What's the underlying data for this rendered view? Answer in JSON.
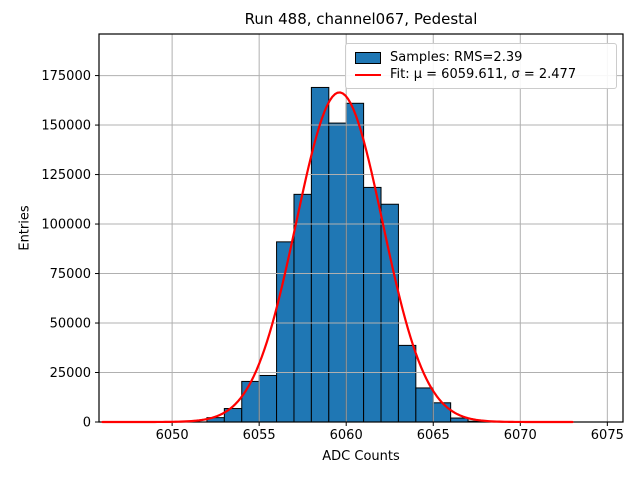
{
  "chart_data": {
    "type": "histogram",
    "title": "Run 488, channel067, Pedestal",
    "xlabel": "ADC Counts",
    "ylabel": "Entries",
    "xlim": [
      6045.8,
      6075.9
    ],
    "ylim": [
      0,
      196000
    ],
    "xticks": [
      6050,
      6055,
      6060,
      6065,
      6070,
      6075
    ],
    "yticks": [
      0,
      25000,
      50000,
      75000,
      100000,
      125000,
      150000,
      175000
    ],
    "grid": true,
    "grid_color": "#b0b0b0",
    "colors": {
      "bar_fill": "#1f77b4",
      "bar_edge": "#000000",
      "fit_line": "#ff0000"
    },
    "bins": {
      "width": 1,
      "starts": [
        6052,
        6053,
        6054,
        6055,
        6056,
        6057,
        6058,
        6059,
        6060,
        6061,
        6062,
        6063,
        6064,
        6065,
        6066,
        6067
      ],
      "counts": [
        2200,
        6800,
        20500,
        23500,
        91000,
        115000,
        169000,
        151000,
        161000,
        118500,
        110000,
        38700,
        17200,
        9700,
        2000,
        400
      ]
    },
    "fit": {
      "mu": 6059.611,
      "sigma": 2.477,
      "peak": 166500,
      "x_start": 6046.0,
      "x_end": 6073.0
    },
    "legend": [
      {
        "swatch": "patch",
        "label": "Samples: RMS=2.39"
      },
      {
        "swatch": "line",
        "label": "Fit: μ = 6059.611, σ = 2.477"
      }
    ]
  }
}
